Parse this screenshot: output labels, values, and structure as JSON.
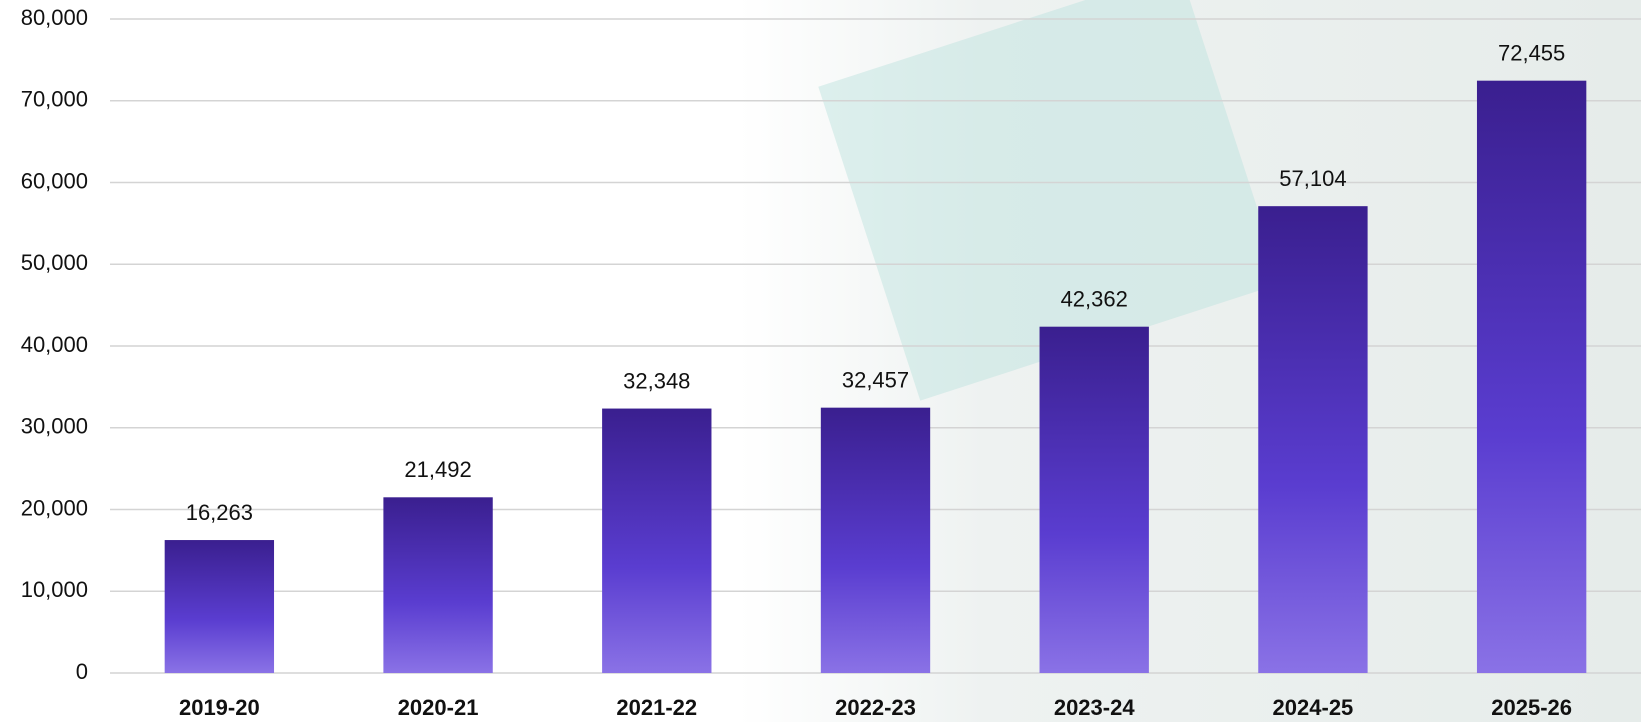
{
  "chart_data": {
    "type": "bar",
    "categories": [
      "2019-20",
      "2020-21",
      "2021-22",
      "2022-23",
      "2023-24",
      "2024-25",
      "2025-26"
    ],
    "values": [
      16263,
      21492,
      32348,
      32457,
      42362,
      57104,
      72455
    ],
    "value_labels": [
      "16,263",
      "21,492",
      "32,348",
      "32,457",
      "42,362",
      "57,104",
      "72,455"
    ],
    "color": "#4a2fb5",
    "ylim": [
      0,
      80000
    ],
    "yticks": [
      0,
      {
        "value": 10000,
        "label": "10,000"
      },
      {
        "value": 20000,
        "label": "20,000"
      },
      {
        "value": 30000,
        "label": "30,000"
      },
      {
        "value": 40000,
        "label": "40,000"
      },
      {
        "value": 50000,
        "label": "50,000"
      },
      {
        "value": 60000,
        "label": "60,000"
      },
      {
        "value": 70000,
        "label": "70,000"
      },
      {
        "value": 80000,
        "label": "80,000"
      }
    ],
    "grid": true
  }
}
